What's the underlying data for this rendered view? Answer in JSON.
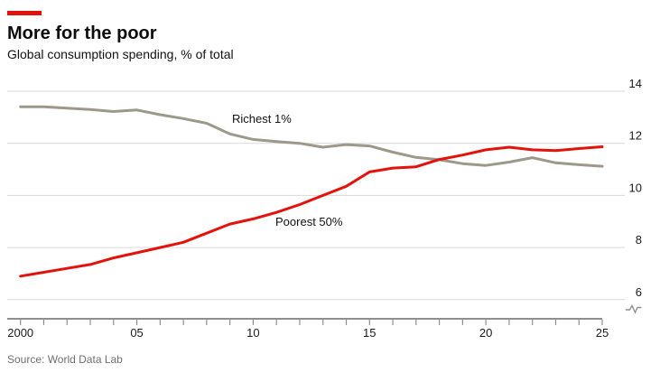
{
  "header": {
    "title": "More for the poor",
    "subtitle": "Global consumption spending, % of total"
  },
  "source_note": "Source: World Data Lab",
  "colors": {
    "accent_red": "#e3120b",
    "richest_line": "#9c998a",
    "poorest_line": "#e3120b",
    "gridline": "#d9d9d9",
    "axis": "#8f8f8f",
    "tick_text": "#1a1a1a",
    "source_text": "#6f6f6f"
  },
  "chart_data": {
    "type": "line",
    "title": "More for the poor",
    "subtitle": "Global consumption spending, % of total",
    "x": [
      2000,
      2001,
      2002,
      2003,
      2004,
      2005,
      2006,
      2007,
      2008,
      2009,
      2010,
      2011,
      2012,
      2013,
      2014,
      2015,
      2016,
      2017,
      2018,
      2019,
      2020,
      2021,
      2022,
      2023,
      2024,
      2025
    ],
    "series": [
      {
        "name": "Richest 1%",
        "color": "#9c998a",
        "values": [
          13.4,
          13.4,
          13.35,
          13.3,
          13.22,
          13.28,
          13.1,
          12.95,
          12.77,
          12.36,
          12.15,
          12.07,
          12.0,
          11.85,
          11.95,
          11.9,
          11.66,
          11.46,
          11.37,
          11.22,
          11.15,
          11.28,
          11.45,
          11.25,
          11.18,
          11.12
        ]
      },
      {
        "name": "Poorest 50%",
        "color": "#e3120b",
        "values": [
          6.9,
          7.05,
          7.2,
          7.35,
          7.6,
          7.8,
          8.0,
          8.2,
          8.55,
          8.9,
          9.1,
          9.35,
          9.65,
          10.0,
          10.35,
          10.9,
          11.05,
          11.1,
          11.38,
          11.55,
          11.75,
          11.85,
          11.75,
          11.72,
          11.8,
          11.87
        ]
      }
    ],
    "xlim": [
      2000,
      2025
    ],
    "ylim": [
      6,
      14
    ],
    "y_ticks": [
      6,
      8,
      10,
      12,
      14
    ],
    "x_tick_years": [
      2000,
      2005,
      2010,
      2015,
      2020,
      2025
    ],
    "x_tick_labels": [
      "2000",
      "05",
      "10",
      "15",
      "20",
      "25"
    ],
    "grid": "horizontal",
    "y_axis_side": "right",
    "legend_position": "inline-labels",
    "axis_break_marker": true
  }
}
